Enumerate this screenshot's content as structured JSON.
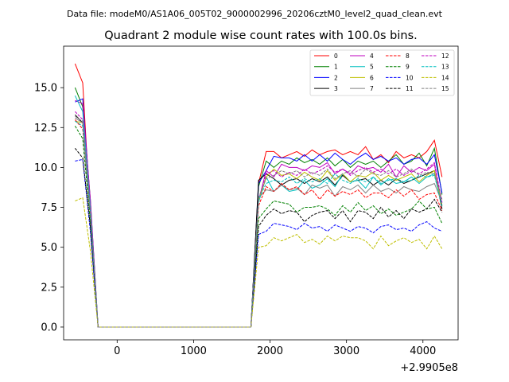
{
  "header": {
    "data_file": "Data file: modeM0/AS1A06_005T02_9000002996_20206cztM0_level2_quad_clean.evt"
  },
  "chart_data": {
    "type": "line",
    "title": "Quadrant 2 module wise count rates with 100.0s bins.",
    "xlabel": "",
    "ylabel": "",
    "x_offset_label": "+2.9905e8",
    "xlim": [
      -700,
      4460
    ],
    "ylim": [
      -0.8,
      17.6
    ],
    "xticks": [
      0,
      1000,
      2000,
      3000,
      4000
    ],
    "xtick_labels": [
      "0",
      "1000",
      "2000",
      "3000",
      "4000"
    ],
    "yticks": [
      0.0,
      2.5,
      5.0,
      7.5,
      10.0,
      12.5,
      15.0
    ],
    "ytick_labels": [
      "0.0",
      "2.5",
      "5.0",
      "7.5",
      "10.0",
      "12.5",
      "15.0"
    ],
    "grid": false,
    "legend_position": "top-right",
    "legend_columns": 4,
    "x": [
      -550,
      -450,
      -350,
      -250,
      -150,
      -50,
      50,
      150,
      250,
      350,
      450,
      550,
      650,
      750,
      850,
      950,
      1050,
      1150,
      1250,
      1350,
      1450,
      1550,
      1650,
      1750,
      1850,
      1950,
      2050,
      2150,
      2250,
      2350,
      2450,
      2550,
      2650,
      2750,
      2850,
      2950,
      3050,
      3150,
      3250,
      3350,
      3450,
      3550,
      3650,
      3750,
      3850,
      3950,
      4050,
      4150,
      4250
    ],
    "series": [
      {
        "name": "0",
        "color": "#ff0000",
        "dash": false,
        "values": [
          16.5,
          15.3,
          7.0,
          0.0,
          0,
          0,
          0,
          0,
          0,
          0,
          0,
          0,
          0,
          0,
          0,
          0,
          0,
          0,
          0,
          0,
          0,
          0,
          0,
          0,
          9.0,
          11.0,
          11.0,
          10.6,
          10.8,
          11.0,
          10.7,
          11.1,
          10.8,
          11.0,
          11.1,
          10.8,
          11.0,
          10.8,
          11.3,
          10.5,
          10.8,
          10.3,
          11.0,
          10.6,
          10.8,
          10.6,
          11.0,
          11.7,
          9.4
        ]
      },
      {
        "name": "1",
        "color": "#008000",
        "dash": false,
        "values": [
          15.0,
          13.8,
          8.0,
          0.0,
          0,
          0,
          0,
          0,
          0,
          0,
          0,
          0,
          0,
          0,
          0,
          0,
          0,
          0,
          0,
          0,
          0,
          0,
          0,
          0,
          8.8,
          10.4,
          10.0,
          10.4,
          10.2,
          10.6,
          10.3,
          10.5,
          10.2,
          10.6,
          10.1,
          10.5,
          10.0,
          10.4,
          10.2,
          10.4,
          10.0,
          10.4,
          10.8,
          10.2,
          10.4,
          10.9,
          10.1,
          11.2,
          8.3
        ]
      },
      {
        "name": "2",
        "color": "#0000ff",
        "dash": false,
        "values": [
          14.1,
          14.3,
          7.8,
          0.0,
          0,
          0,
          0,
          0,
          0,
          0,
          0,
          0,
          0,
          0,
          0,
          0,
          0,
          0,
          0,
          0,
          0,
          0,
          0,
          0,
          9.0,
          9.8,
          10.7,
          10.6,
          10.6,
          10.4,
          10.8,
          10.4,
          10.8,
          10.4,
          10.9,
          10.5,
          10.2,
          10.6,
          10.9,
          10.5,
          10.7,
          10.4,
          10.6,
          10.2,
          10.5,
          10.6,
          10.2,
          10.8,
          8.4
        ]
      },
      {
        "name": "3",
        "color": "#000000",
        "dash": false,
        "values": [
          13.3,
          12.8,
          7.0,
          0.0,
          0,
          0,
          0,
          0,
          0,
          0,
          0,
          0,
          0,
          0,
          0,
          0,
          0,
          0,
          0,
          0,
          0,
          0,
          0,
          0,
          9.2,
          9.6,
          9.3,
          8.9,
          9.2,
          9.3,
          9.0,
          9.3,
          9.1,
          9.4,
          8.9,
          9.5,
          9.1,
          9.2,
          9.3,
          8.9,
          9.2,
          8.9,
          9.3,
          9.0,
          9.2,
          9.4,
          9.6,
          9.8,
          7.4
        ]
      },
      {
        "name": "4",
        "color": "#bf00bf",
        "dash": false,
        "values": [
          14.2,
          14.0,
          8.0,
          0.0,
          0,
          0,
          0,
          0,
          0,
          0,
          0,
          0,
          0,
          0,
          0,
          0,
          0,
          0,
          0,
          0,
          0,
          0,
          0,
          0,
          7.9,
          9.8,
          9.4,
          10.2,
          10.0,
          10.0,
          9.8,
          10.1,
          10.0,
          10.3,
          9.6,
          9.9,
          9.6,
          10.1,
          9.9,
          10.0,
          9.7,
          10.2,
          9.4,
          10.1,
          9.7,
          10.0,
          9.8,
          10.2,
          7.6
        ]
      },
      {
        "name": "5",
        "color": "#00bfbf",
        "dash": false,
        "values": [
          14.5,
          13.5,
          7.5,
          0.0,
          0,
          0,
          0,
          0,
          0,
          0,
          0,
          0,
          0,
          0,
          0,
          0,
          0,
          0,
          0,
          0,
          0,
          0,
          0,
          0,
          7.8,
          9.4,
          8.5,
          8.9,
          8.5,
          8.6,
          9.2,
          8.7,
          8.9,
          9.3,
          8.8,
          9.6,
          9.1,
          9.2,
          8.7,
          9.4,
          8.9,
          9.3,
          9.0,
          9.1,
          9.4,
          9.0,
          9.4,
          9.6,
          7.6
        ]
      },
      {
        "name": "6",
        "color": "#bfbf00",
        "dash": false,
        "values": [
          12.9,
          12.8,
          7.0,
          0.0,
          0,
          0,
          0,
          0,
          0,
          0,
          0,
          0,
          0,
          0,
          0,
          0,
          0,
          0,
          0,
          0,
          0,
          0,
          0,
          0,
          7.9,
          9.4,
          9.9,
          9.5,
          9.6,
          9.3,
          9.7,
          9.4,
          9.2,
          9.8,
          9.2,
          9.6,
          9.1,
          9.5,
          9.4,
          9.7,
          9.2,
          9.5,
          9.2,
          9.4,
          9.6,
          9.1,
          9.5,
          9.8,
          7.6
        ]
      },
      {
        "name": "7",
        "color": "#808080",
        "dash": false,
        "values": [
          13.1,
          12.8,
          7.2,
          0.0,
          0,
          0,
          0,
          0,
          0,
          0,
          0,
          0,
          0,
          0,
          0,
          0,
          0,
          0,
          0,
          0,
          0,
          0,
          0,
          0,
          8.1,
          8.6,
          8.5,
          8.9,
          8.6,
          8.7,
          8.3,
          8.9,
          8.7,
          8.9,
          8.2,
          8.8,
          8.6,
          8.9,
          8.4,
          8.9,
          8.5,
          8.7,
          8.4,
          8.8,
          8.6,
          8.5,
          8.8,
          9.0,
          7.8
        ]
      },
      {
        "name": "8",
        "color": "#ff0000",
        "dash": true,
        "values": [
          13.0,
          12.4,
          7.0,
          0.0,
          0,
          0,
          0,
          0,
          0,
          0,
          0,
          0,
          0,
          0,
          0,
          0,
          0,
          0,
          0,
          0,
          0,
          0,
          0,
          0,
          7.6,
          8.8,
          8.5,
          9.0,
          8.6,
          8.8,
          8.3,
          8.6,
          8.0,
          8.6,
          8.2,
          8.5,
          8.3,
          8.6,
          8.1,
          8.4,
          8.4,
          8.1,
          8.6,
          8.2,
          8.6,
          8.0,
          8.3,
          8.4,
          7.3
        ]
      },
      {
        "name": "9",
        "color": "#008000",
        "dash": true,
        "values": [
          12.6,
          11.8,
          6.6,
          0.0,
          0,
          0,
          0,
          0,
          0,
          0,
          0,
          0,
          0,
          0,
          0,
          0,
          0,
          0,
          0,
          0,
          0,
          0,
          0,
          0,
          6.8,
          7.4,
          7.9,
          7.8,
          7.7,
          7.2,
          7.5,
          7.5,
          7.6,
          7.4,
          7.0,
          7.6,
          7.2,
          7.8,
          7.3,
          7.6,
          7.1,
          7.4,
          7.0,
          7.2,
          7.4,
          7.9,
          7.4,
          7.5,
          6.5
        ]
      },
      {
        "name": "10",
        "color": "#0000ff",
        "dash": true,
        "values": [
          10.4,
          10.5,
          6.0,
          0.0,
          0,
          0,
          0,
          0,
          0,
          0,
          0,
          0,
          0,
          0,
          0,
          0,
          0,
          0,
          0,
          0,
          0,
          0,
          0,
          0,
          5.8,
          6.0,
          6.5,
          6.4,
          6.3,
          6.1,
          6.5,
          6.2,
          6.3,
          6.0,
          6.4,
          6.2,
          6.0,
          6.3,
          6.2,
          5.9,
          6.3,
          6.4,
          6.1,
          6.2,
          6.0,
          6.4,
          6.6,
          6.2,
          6.0
        ]
      },
      {
        "name": "11",
        "color": "#000000",
        "dash": true,
        "values": [
          11.2,
          10.6,
          6.3,
          0.0,
          0,
          0,
          0,
          0,
          0,
          0,
          0,
          0,
          0,
          0,
          0,
          0,
          0,
          0,
          0,
          0,
          0,
          0,
          0,
          0,
          6.3,
          7.0,
          7.4,
          7.1,
          7.3,
          7.2,
          6.6,
          7.0,
          7.2,
          7.3,
          6.8,
          7.3,
          6.6,
          7.3,
          7.2,
          6.8,
          7.5,
          6.9,
          7.3,
          6.8,
          7.4,
          7.2,
          7.4,
          8.0,
          7.2
        ]
      },
      {
        "name": "12",
        "color": "#bf00bf",
        "dash": true,
        "values": [
          13.5,
          13.0,
          7.3,
          0.0,
          0,
          0,
          0,
          0,
          0,
          0,
          0,
          0,
          0,
          0,
          0,
          0,
          0,
          0,
          0,
          0,
          0,
          0,
          0,
          0,
          8.0,
          9.6,
          9.8,
          9.4,
          9.7,
          9.5,
          9.9,
          9.6,
          9.8,
          10.1,
          9.7,
          9.9,
          9.5,
          9.8,
          10.0,
          9.7,
          9.9,
          9.6,
          9.9,
          9.5,
          9.8,
          9.6,
          9.9,
          10.3,
          7.8
        ]
      },
      {
        "name": "13",
        "color": "#00bfbf",
        "dash": true,
        "values": [
          12.9,
          12.6,
          7.1,
          0.0,
          0,
          0,
          0,
          0,
          0,
          0,
          0,
          0,
          0,
          0,
          0,
          0,
          0,
          0,
          0,
          0,
          0,
          0,
          0,
          0,
          8.0,
          9.0,
          9.2,
          9.1,
          9.4,
          9.0,
          9.3,
          9.1,
          9.3,
          9.0,
          9.6,
          9.2,
          9.0,
          9.3,
          9.1,
          9.4,
          9.0,
          9.2,
          9.3,
          9.1,
          9.2,
          9.5,
          9.4,
          9.5,
          7.6
        ]
      },
      {
        "name": "14",
        "color": "#bfbf00",
        "dash": true,
        "values": [
          7.9,
          8.1,
          4.8,
          0.0,
          0,
          0,
          0,
          0,
          0,
          0,
          0,
          0,
          0,
          0,
          0,
          0,
          0,
          0,
          0,
          0,
          0,
          0,
          0,
          0,
          5.0,
          5.1,
          5.6,
          5.4,
          5.6,
          5.8,
          5.3,
          5.5,
          5.2,
          5.7,
          5.4,
          5.7,
          5.6,
          5.6,
          5.4,
          4.9,
          5.7,
          5.1,
          5.4,
          5.6,
          5.3,
          5.5,
          4.9,
          5.7,
          4.9
        ]
      },
      {
        "name": "15",
        "color": "#808080",
        "dash": true,
        "values": [
          13.2,
          12.9,
          7.2,
          0.0,
          0,
          0,
          0,
          0,
          0,
          0,
          0,
          0,
          0,
          0,
          0,
          0,
          0,
          0,
          0,
          0,
          0,
          0,
          0,
          0,
          8.1,
          9.3,
          9.5,
          9.8,
          9.6,
          9.8,
          9.4,
          9.7,
          9.5,
          9.9,
          9.3,
          9.6,
          9.8,
          9.4,
          9.9,
          9.6,
          9.5,
          9.8,
          9.4,
          9.6,
          9.9,
          9.5,
          9.7,
          9.6,
          8.0
        ]
      }
    ]
  }
}
